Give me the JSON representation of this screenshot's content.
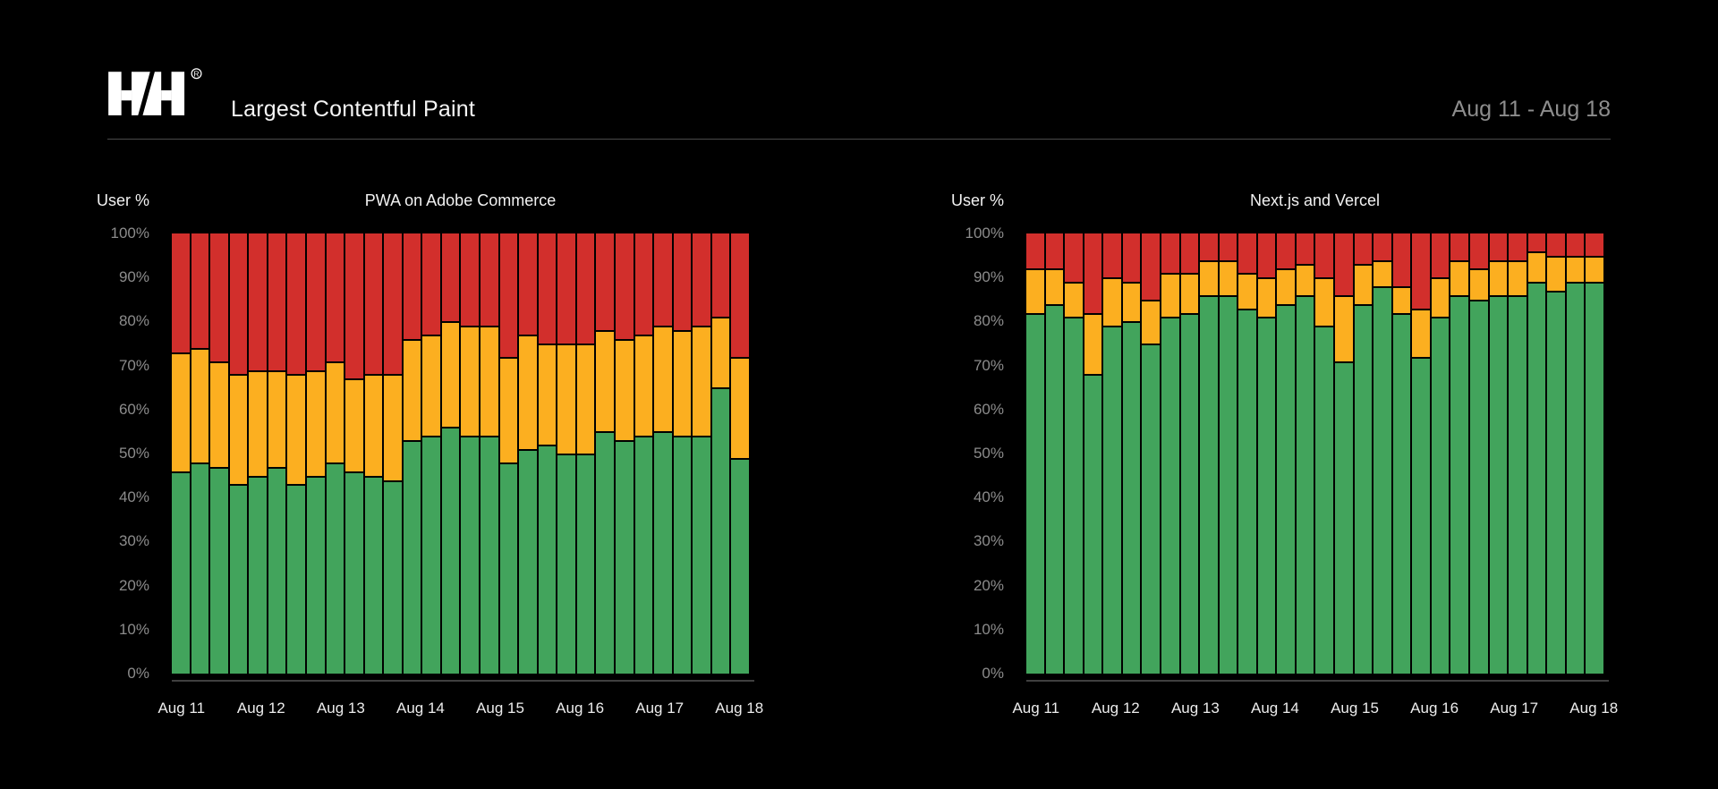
{
  "header": {
    "logo": "hh-logo",
    "registered_mark": "®",
    "title": "Largest Contentful Paint",
    "date_range": "Aug 11 - Aug 18"
  },
  "colors": {
    "good": "#42A45C",
    "needs_improvement": "#FCAF20",
    "poor": "#D22F2C",
    "background": "#000000",
    "axis_line": "#3F3F3F",
    "y_tick_text": "#8C8C8C",
    "x_tick_text": "#ECECEC"
  },
  "chart_data": [
    {
      "type": "bar",
      "stacked": true,
      "title": "PWA on Adobe Commerce",
      "ylabel": "User %",
      "ylim": [
        0,
        100
      ],
      "grid": false,
      "legend": "none",
      "y_tick_labels": [
        "100%",
        "90%",
        "80%",
        "70%",
        "60%",
        "50%",
        "40%",
        "30%",
        "20%",
        "10%",
        "0%"
      ],
      "x_tick_labels": [
        "Aug 11",
        "Aug 12",
        "Aug 13",
        "Aug 14",
        "Aug 15",
        "Aug 16",
        "Aug 17",
        "Aug 18"
      ],
      "series": [
        {
          "name": "good",
          "color": "#42A45C",
          "values": [
            46,
            48,
            47,
            43,
            45,
            47,
            43,
            45,
            48,
            46,
            45,
            44,
            53,
            54,
            56,
            54,
            54,
            48,
            51,
            52,
            50,
            50,
            55,
            53,
            54,
            55,
            54,
            54,
            65,
            49
          ]
        },
        {
          "name": "needs-improvement",
          "color": "#FCAF20",
          "values": [
            27,
            26,
            24,
            25,
            24,
            22,
            25,
            24,
            23,
            21,
            23,
            24,
            23,
            23,
            24,
            25,
            25,
            24,
            26,
            23,
            25,
            25,
            23,
            23,
            23,
            24,
            24,
            25,
            16,
            23
          ]
        },
        {
          "name": "poor",
          "color": "#D22F2C",
          "values": [
            27,
            26,
            29,
            32,
            31,
            31,
            32,
            31,
            29,
            33,
            32,
            32,
            24,
            23,
            20,
            21,
            21,
            28,
            23,
            25,
            25,
            25,
            22,
            24,
            23,
            21,
            22,
            21,
            19,
            28
          ]
        }
      ]
    },
    {
      "type": "bar",
      "stacked": true,
      "title": "Next.js and Vercel",
      "ylabel": "User %",
      "ylim": [
        0,
        100
      ],
      "grid": false,
      "legend": "none",
      "y_tick_labels": [
        "100%",
        "90%",
        "80%",
        "70%",
        "60%",
        "50%",
        "40%",
        "30%",
        "20%",
        "10%",
        "0%"
      ],
      "x_tick_labels": [
        "Aug 11",
        "Aug 12",
        "Aug 13",
        "Aug 14",
        "Aug 15",
        "Aug 16",
        "Aug 17",
        "Aug 18"
      ],
      "series": [
        {
          "name": "good",
          "color": "#42A45C",
          "values": [
            82,
            84,
            81,
            68,
            79,
            80,
            75,
            81,
            82,
            86,
            86,
            83,
            81,
            84,
            86,
            79,
            71,
            84,
            88,
            82,
            72,
            81,
            86,
            85,
            86,
            86,
            89,
            87,
            89,
            89
          ]
        },
        {
          "name": "needs-improvement",
          "color": "#FCAF20",
          "values": [
            10,
            8,
            8,
            14,
            11,
            9,
            10,
            10,
            9,
            8,
            8,
            8,
            9,
            8,
            7,
            11,
            15,
            9,
            6,
            6,
            11,
            9,
            8,
            7,
            8,
            8,
            7,
            8,
            6,
            6
          ]
        },
        {
          "name": "poor",
          "color": "#D22F2C",
          "values": [
            8,
            8,
            11,
            18,
            10,
            11,
            15,
            9,
            9,
            6,
            6,
            9,
            10,
            8,
            7,
            10,
            14,
            7,
            6,
            12,
            17,
            10,
            6,
            8,
            6,
            6,
            4,
            5,
            5,
            5
          ]
        }
      ]
    }
  ]
}
